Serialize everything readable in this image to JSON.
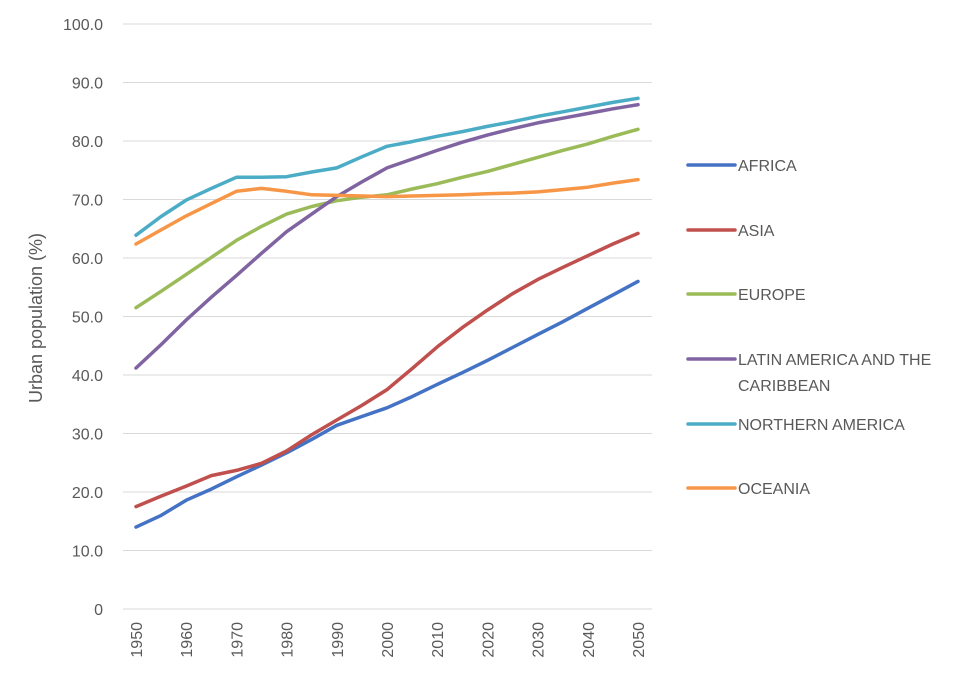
{
  "chart_data": {
    "type": "line",
    "title": "",
    "xlabel": "",
    "ylabel": "Urban population (%)",
    "ylim": [
      0,
      100
    ],
    "yticks": [
      "0",
      "10.0",
      "20.0",
      "30.0",
      "40.0",
      "50.0",
      "60.0",
      "70.0",
      "80.0",
      "90.0",
      "100.0"
    ],
    "xticks": [
      "1950",
      "1960",
      "1970",
      "1980",
      "1990",
      "2000",
      "2010",
      "2020",
      "2030",
      "2040",
      "2050"
    ],
    "grid": "horizontal",
    "legend_position": "right",
    "x": [
      1950,
      1955,
      1960,
      1965,
      1970,
      1975,
      1980,
      1985,
      1990,
      1995,
      2000,
      2005,
      2010,
      2015,
      2020,
      2025,
      2030,
      2035,
      2040,
      2045,
      2050
    ],
    "series": [
      {
        "name": "AFRICA",
        "color": "#4472c4",
        "legend_lines": [
          "AFRICA"
        ],
        "values": [
          14.0,
          16.0,
          18.6,
          20.5,
          22.6,
          24.6,
          26.7,
          29.0,
          31.4,
          32.9,
          34.4,
          36.3,
          38.4,
          40.4,
          42.5,
          44.7,
          46.9,
          49.1,
          51.4,
          53.7,
          56.0
        ]
      },
      {
        "name": "ASIA",
        "color": "#c0504d",
        "legend_lines": [
          "ASIA"
        ],
        "values": [
          17.5,
          19.3,
          21.0,
          22.8,
          23.7,
          24.9,
          27.0,
          29.8,
          32.3,
          34.8,
          37.5,
          41.1,
          44.8,
          48.1,
          51.1,
          53.9,
          56.3,
          58.4,
          60.4,
          62.4,
          64.2
        ]
      },
      {
        "name": "EUROPE",
        "color": "#9bbb59",
        "legend_lines": [
          "EUROPE"
        ],
        "values": [
          51.5,
          54.3,
          57.2,
          60.1,
          63.0,
          65.4,
          67.5,
          68.8,
          69.8,
          70.4,
          70.8,
          71.8,
          72.7,
          73.8,
          74.8,
          76.0,
          77.2,
          78.4,
          79.5,
          80.8,
          82.0
        ]
      },
      {
        "name": "LATIN AMERICA AND THE CARIBBEAN",
        "color": "#8064a2",
        "legend_lines": [
          "LATIN AMERICA AND THE",
          "CARIBBEAN"
        ],
        "values": [
          41.2,
          45.2,
          49.4,
          53.3,
          57.0,
          60.8,
          64.5,
          67.5,
          70.5,
          73.0,
          75.4,
          76.9,
          78.4,
          79.8,
          81.0,
          82.1,
          83.1,
          83.9,
          84.7,
          85.5,
          86.2
        ]
      },
      {
        "name": "NORTHERN AMERICA",
        "color": "#4bacc6",
        "legend_lines": [
          "NORTHERN AMERICA"
        ],
        "values": [
          63.9,
          67.1,
          69.9,
          71.9,
          73.8,
          73.8,
          73.9,
          74.7,
          75.4,
          77.3,
          79.1,
          79.9,
          80.8,
          81.6,
          82.5,
          83.3,
          84.2,
          85.0,
          85.8,
          86.6,
          87.3
        ]
      },
      {
        "name": "OCEANIA",
        "color": "#f79646",
        "legend_lines": [
          "OCEANIA"
        ],
        "values": [
          62.4,
          64.8,
          67.2,
          69.3,
          71.4,
          71.9,
          71.4,
          70.8,
          70.7,
          70.6,
          70.5,
          70.6,
          70.7,
          70.8,
          71.0,
          71.1,
          71.3,
          71.7,
          72.1,
          72.8,
          73.4
        ]
      }
    ]
  }
}
